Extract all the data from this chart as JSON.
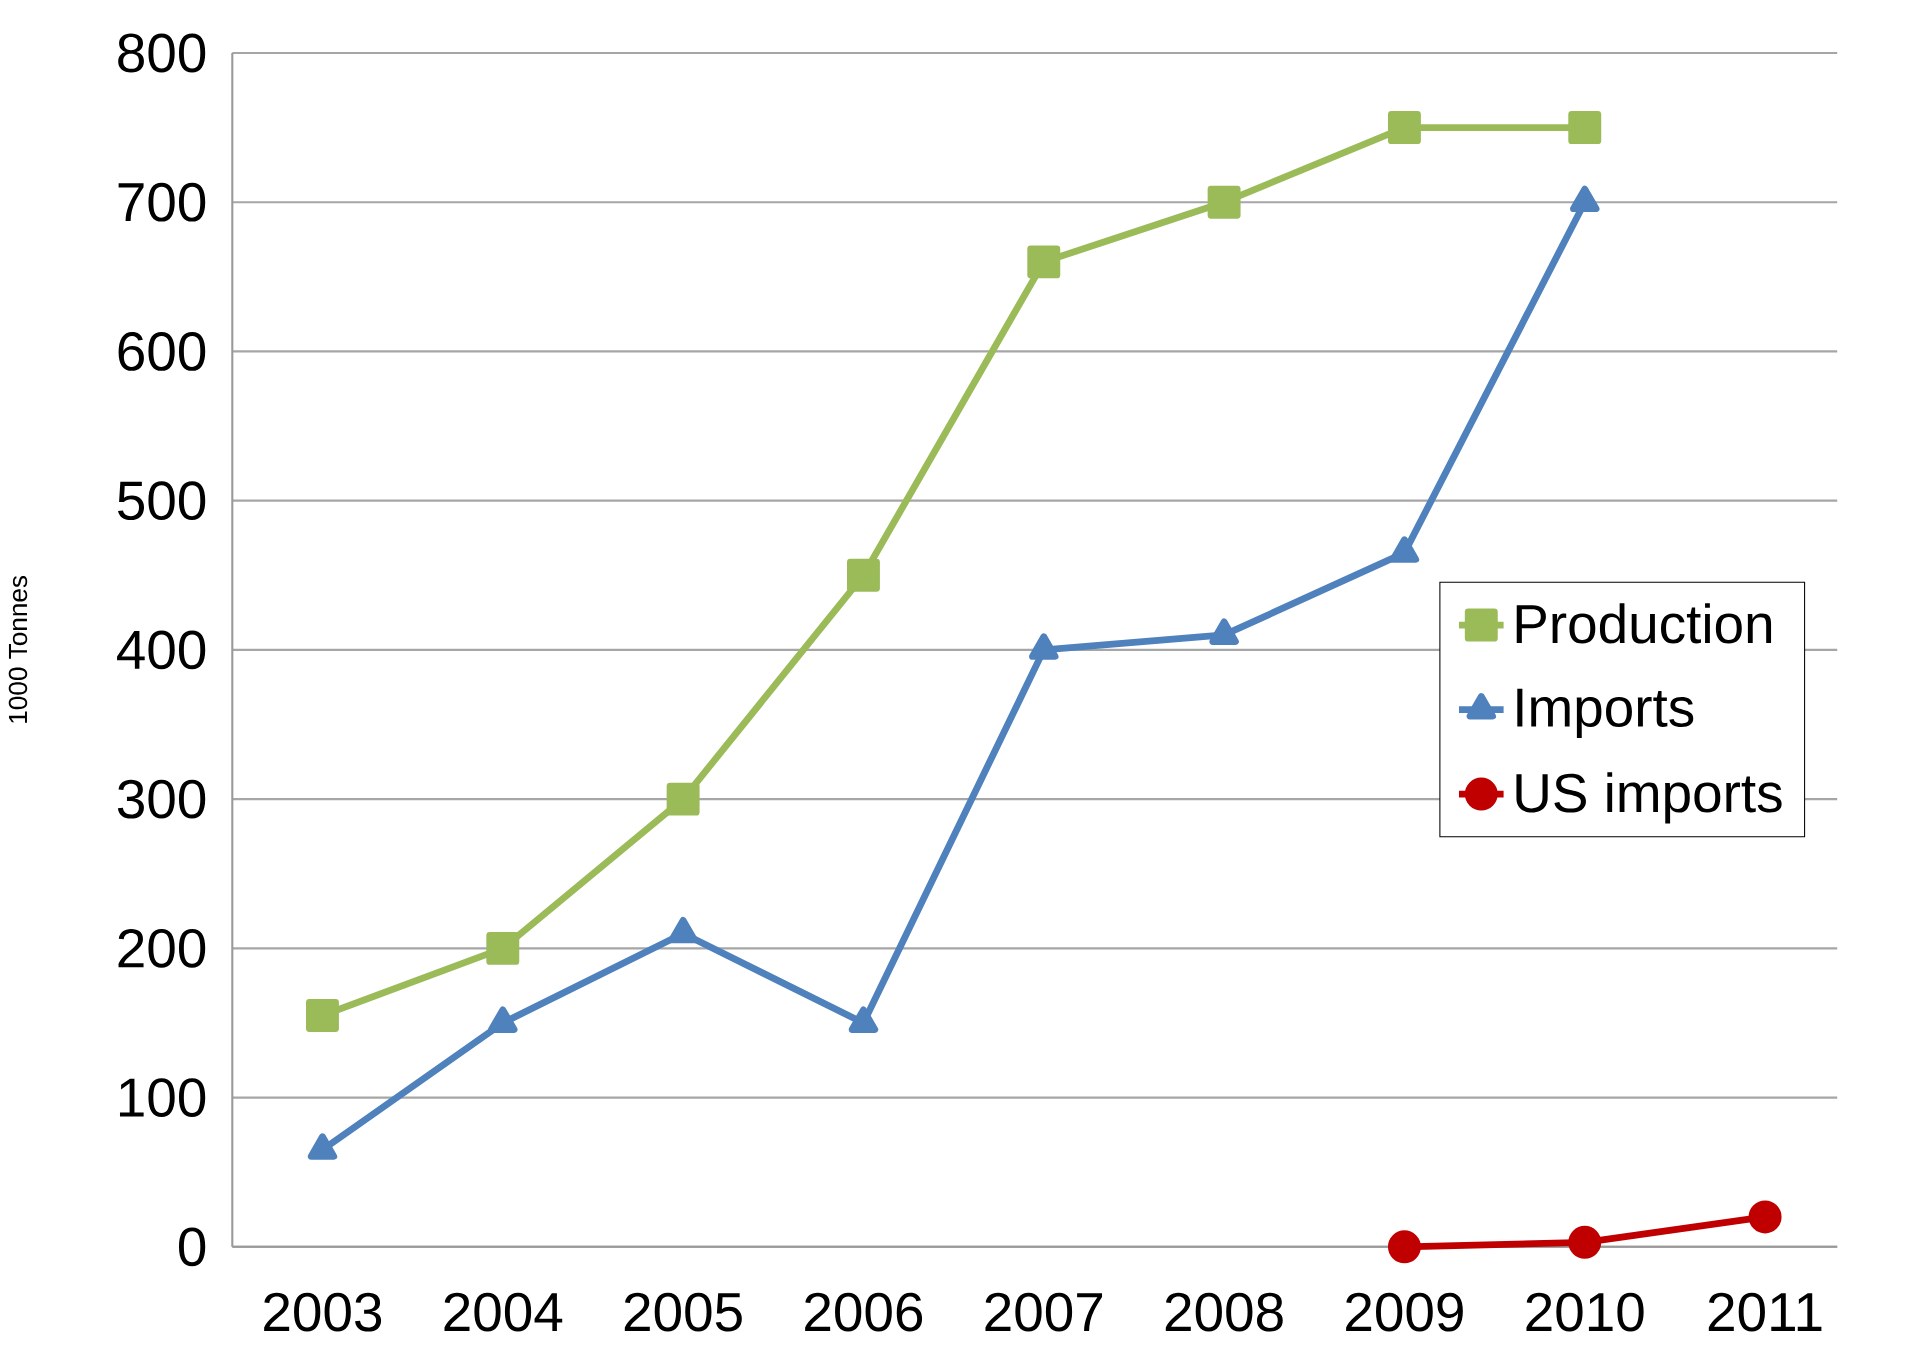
{
  "chart_data": {
    "type": "line",
    "ylabel": "1000 Tonnes",
    "categories": [
      "2003",
      "2004",
      "2005",
      "2006",
      "2007",
      "2008",
      "2009",
      "2010",
      "2011"
    ],
    "series": [
      {
        "name": "Production",
        "color": "#9bbb59",
        "marker": "square",
        "values": [
          155,
          200,
          300,
          450,
          660,
          700,
          750,
          750,
          null
        ]
      },
      {
        "name": "Imports",
        "color": "#4f81bd",
        "marker": "triangle",
        "values": [
          65,
          150,
          210,
          150,
          400,
          410,
          465,
          700,
          null
        ]
      },
      {
        "name": "US imports",
        "color": "#c00000",
        "marker": "circle",
        "values": [
          null,
          null,
          null,
          null,
          null,
          null,
          0,
          3,
          20
        ]
      }
    ],
    "ylim": [
      0,
      800
    ],
    "yticks": [
      0,
      100,
      200,
      300,
      400,
      500,
      600,
      700,
      800
    ],
    "grid": "y",
    "legend": "right"
  }
}
